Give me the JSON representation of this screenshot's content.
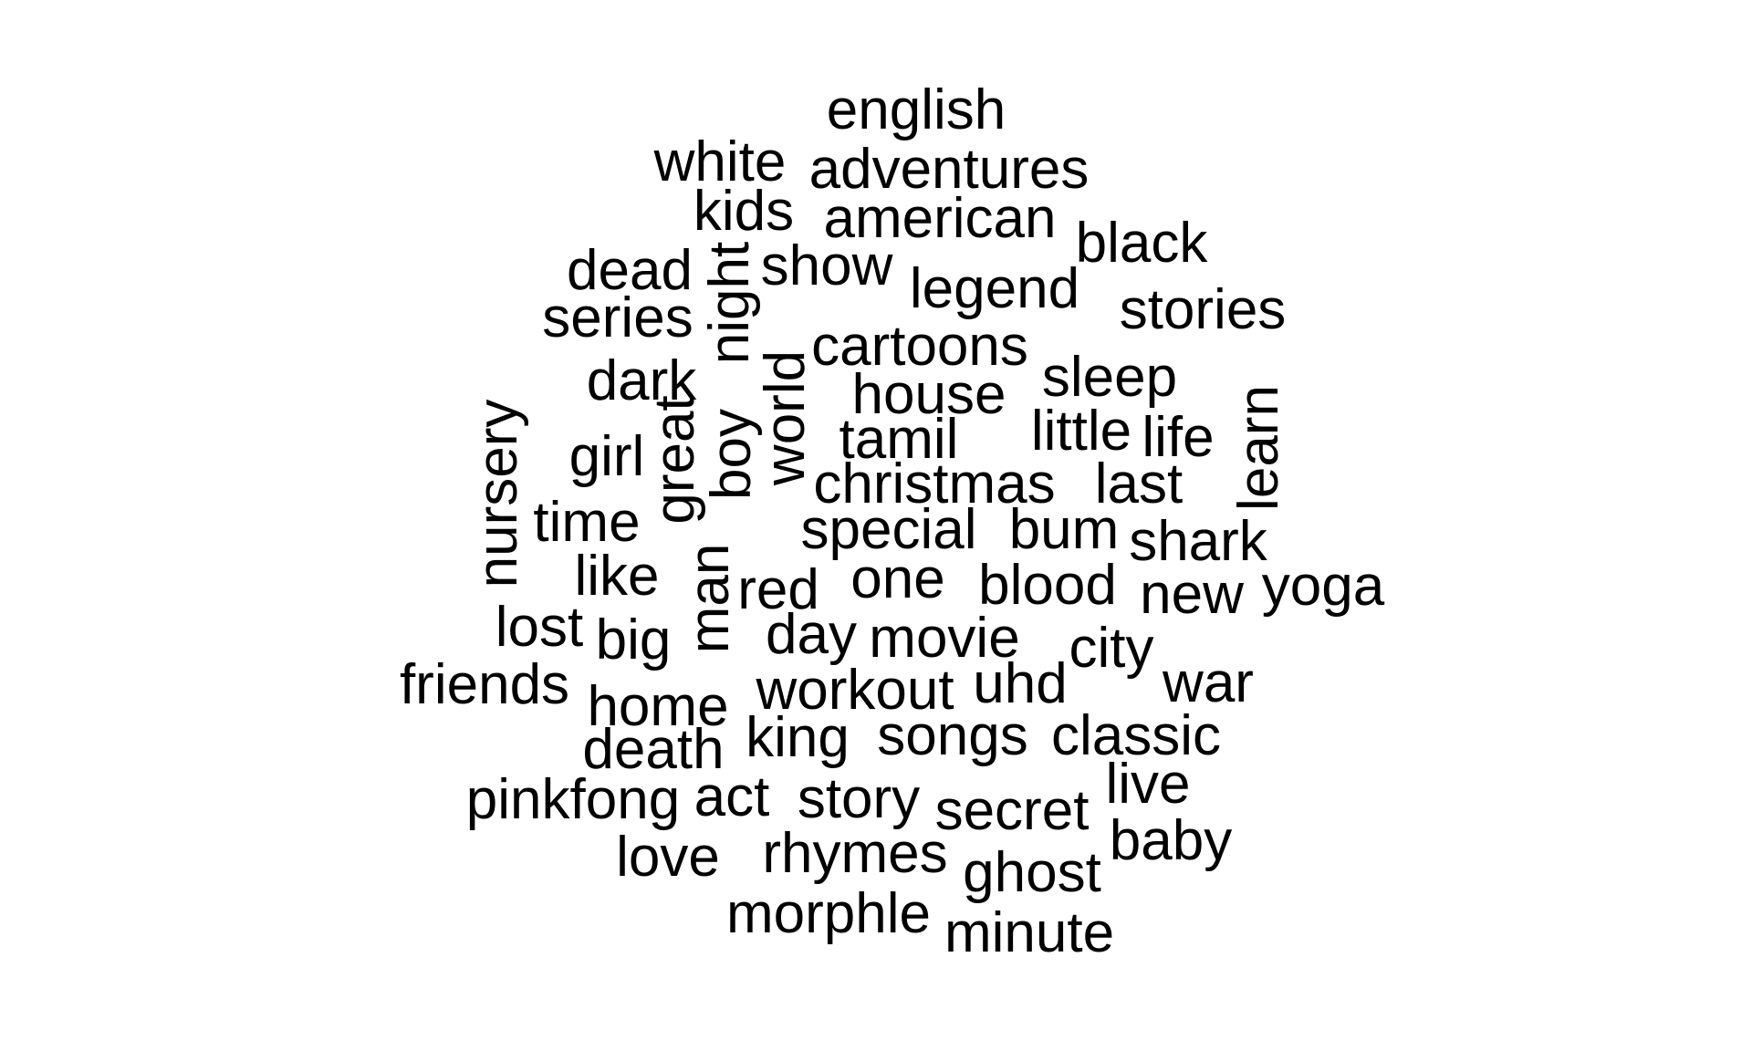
{
  "words": [
    "english",
    "white",
    "adventures",
    "kids",
    "american",
    "black",
    "dead",
    "night",
    "show",
    "legend",
    "series",
    "stories",
    "cartoons",
    "dark",
    "sleep",
    "nursery",
    "house",
    "world",
    "great",
    "boy",
    "learn",
    "tamil",
    "little",
    "life",
    "girl",
    "christmas",
    "last",
    "time",
    "special",
    "bum",
    "shark",
    "like",
    "man",
    "one",
    "red",
    "blood",
    "new",
    "yoga",
    "lost",
    "big",
    "day",
    "movie",
    "city",
    "friends",
    "home",
    "workout",
    "uhd",
    "war",
    "death",
    "king",
    "songs",
    "classic",
    "pinkfong",
    "act",
    "story",
    "live",
    "secret",
    "love",
    "rhymes",
    "baby",
    "ghost",
    "morphle",
    "minute"
  ]
}
